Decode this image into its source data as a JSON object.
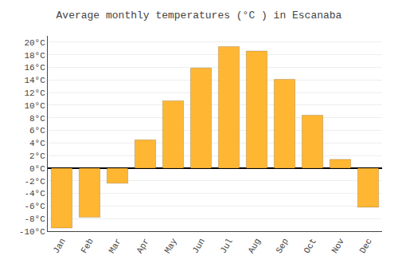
{
  "chart_data": {
    "type": "bar",
    "title": "Average monthly temperatures (°C ) in Escanaba",
    "categories": [
      "Jan",
      "Feb",
      "Mar",
      "Apr",
      "May",
      "Jun",
      "Jul",
      "Aug",
      "Sep",
      "Oct",
      "Nov",
      "Dec"
    ],
    "values": [
      -9.5,
      -7.8,
      -2.4,
      4.5,
      10.7,
      15.9,
      19.3,
      18.6,
      14.1,
      8.4,
      1.4,
      -6.2
    ],
    "color": "#FFB733",
    "ylim": [
      -10,
      21
    ],
    "yticks": [
      {
        "value": -10,
        "label": "-10°C"
      },
      {
        "value": -8,
        "label": "-8°C"
      },
      {
        "value": -6,
        "label": "-6°C"
      },
      {
        "value": -4,
        "label": "-4°C"
      },
      {
        "value": -2,
        "label": "-2°C"
      },
      {
        "value": 0,
        "label": "0°C"
      },
      {
        "value": 2,
        "label": "2°C"
      },
      {
        "value": 4,
        "label": "4°C"
      },
      {
        "value": 6,
        "label": "6°C"
      },
      {
        "value": 8,
        "label": "8°C"
      },
      {
        "value": 10,
        "label": "10°C"
      },
      {
        "value": 12,
        "label": "12°C"
      },
      {
        "value": 14,
        "label": "14°C"
      },
      {
        "value": 16,
        "label": "16°C"
      },
      {
        "value": 18,
        "label": "18°C"
      },
      {
        "value": 20,
        "label": "20°C"
      }
    ],
    "grid": true
  }
}
